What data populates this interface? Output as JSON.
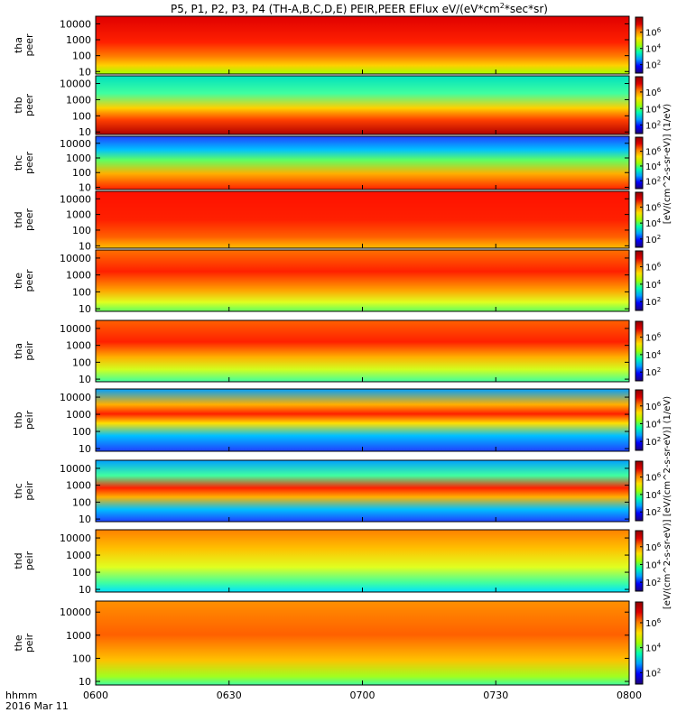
{
  "chart_data": {
    "type": "heatmap",
    "title": "P5, P1, P2, P3, P4 (TH-A,B,C,D,E) PEIR,PEER EFlux eV/(eV*cm2*sec*sr)",
    "title_parts": {
      "prefix": "P5, P1, P2, P3, P4 (TH-A,B,C,D,E) PEIR,PEER EFlux eV/(eV*cm",
      "sup": "2",
      "suffix": "*sec*sr)"
    },
    "x_axis": {
      "label": "hhmm",
      "date": "2016 Mar 11",
      "range": [
        "0600",
        "0800"
      ],
      "ticks": [
        "0600",
        "0630",
        "0700",
        "0730",
        "0800"
      ]
    },
    "y_axis": {
      "scale": "log",
      "units": "eV",
      "range": [
        7,
        30000
      ]
    },
    "colorbar": {
      "scale": "log",
      "tick_labels": [
        "10^2",
        "10^4",
        "10^6"
      ],
      "palette": [
        "#1e007a",
        "#0000ff",
        "#00a0ff",
        "#00ffb0",
        "#a0ff00",
        "#ffe000",
        "#ff8000",
        "#e00000",
        "#900000"
      ],
      "unit_label_peer": "[eV/(cm^2-s-sr-eV)] (1/eV)",
      "unit_label_peir": "[eV/(cm^2-s-sr-eV)] [eV/(cm^2-s-sr-eV)] (1/eV)"
    },
    "panels": [
      {
        "probe": "tha",
        "species": "peer",
        "ylabel": [
          "tha",
          "peer"
        ],
        "yticks": [
          "10000",
          "1000",
          "100",
          "10"
        ]
      },
      {
        "probe": "thb",
        "species": "peer",
        "ylabel": [
          "thb",
          "peer"
        ],
        "yticks": [
          "10000",
          "1000",
          "100",
          "10"
        ]
      },
      {
        "probe": "thc",
        "species": "peer",
        "ylabel": [
          "thc",
          "peer"
        ],
        "yticks": [
          "10000",
          "1000",
          "100",
          "10"
        ]
      },
      {
        "probe": "thd",
        "species": "peer",
        "ylabel": [
          "thd",
          "peer"
        ],
        "yticks": [
          "10000",
          "1000",
          "100",
          "10"
        ]
      },
      {
        "probe": "the",
        "species": "peer",
        "ylabel": [
          "the",
          "peer"
        ],
        "yticks": [
          "10000",
          "1000",
          "100",
          "10"
        ]
      },
      {
        "probe": "tha",
        "species": "peir",
        "ylabel": [
          "tha",
          "peir"
        ],
        "yticks": [
          "10000",
          "1000",
          "100",
          "10"
        ]
      },
      {
        "probe": "thb",
        "species": "peir",
        "ylabel": [
          "thb",
          "peir"
        ],
        "yticks": [
          "10000",
          "1000",
          "100",
          "10"
        ]
      },
      {
        "probe": "thc",
        "species": "peir",
        "ylabel": [
          "thc",
          "peir"
        ],
        "yticks": [
          "10000",
          "1000",
          "100",
          "10"
        ]
      },
      {
        "probe": "thd",
        "species": "peir",
        "ylabel": [
          "thd",
          "peir"
        ],
        "yticks": [
          "10000",
          "1000",
          "100",
          "10"
        ]
      },
      {
        "probe": "the",
        "species": "peir",
        "ylabel": [
          "the",
          "peir"
        ],
        "yticks": [
          "10000",
          "1000",
          "100",
          "10"
        ]
      }
    ]
  }
}
